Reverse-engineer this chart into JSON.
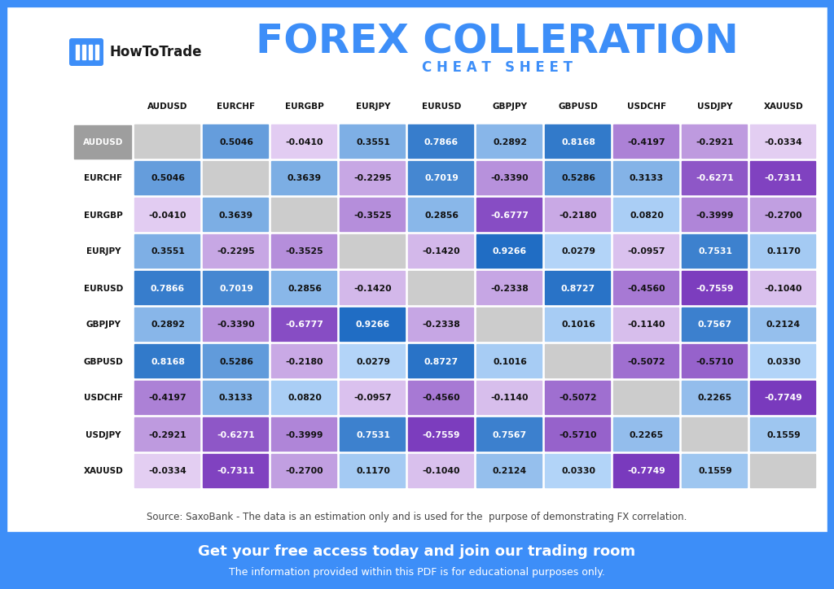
{
  "title": "FOREX COLLERATION",
  "subtitle": "C H E A T   S H E E T",
  "source_text": "Source: SaxoBank - The data is an estimation only and is used for the  purpose of demonstrating FX correlation.",
  "footer_main": "Get your free access today and join our trading room",
  "footer_sub": "The information provided within this PDF is for educational purposes only.",
  "currencies": [
    "AUDUSD",
    "EURCHF",
    "EURGBP",
    "EURJPY",
    "EURUSD",
    "GBPJPY",
    "GBPUSD",
    "USDCHF",
    "USDJPY",
    "XAUUSD"
  ],
  "matrix": [
    [
      null,
      0.5046,
      -0.041,
      0.3551,
      0.7866,
      0.2892,
      0.8168,
      -0.4197,
      -0.2921,
      -0.0334
    ],
    [
      0.5046,
      null,
      0.3639,
      -0.2295,
      0.7019,
      -0.339,
      0.5286,
      0.3133,
      -0.6271,
      -0.7311
    ],
    [
      -0.041,
      0.3639,
      null,
      -0.3525,
      0.2856,
      -0.6777,
      -0.218,
      0.082,
      -0.3999,
      -0.27
    ],
    [
      0.3551,
      -0.2295,
      -0.3525,
      null,
      -0.142,
      0.9266,
      0.0279,
      -0.0957,
      0.7531,
      0.117
    ],
    [
      0.7866,
      0.7019,
      0.2856,
      -0.142,
      null,
      -0.2338,
      0.8727,
      -0.456,
      -0.7559,
      -0.104
    ],
    [
      0.2892,
      -0.339,
      -0.6777,
      0.9266,
      -0.2338,
      null,
      0.1016,
      -0.114,
      0.7567,
      0.2124
    ],
    [
      0.8168,
      0.5286,
      -0.218,
      0.0279,
      0.8727,
      0.1016,
      null,
      -0.5072,
      -0.571,
      0.033
    ],
    [
      -0.4197,
      0.3133,
      0.082,
      -0.0957,
      -0.456,
      -0.114,
      -0.5072,
      null,
      0.2265,
      -0.7749
    ],
    [
      -0.2921,
      -0.6271,
      -0.3999,
      0.7531,
      -0.7559,
      0.7567,
      -0.571,
      0.2265,
      null,
      0.1559
    ],
    [
      -0.0334,
      -0.7311,
      -0.27,
      0.117,
      -0.104,
      0.2124,
      0.033,
      -0.7749,
      0.1559,
      null
    ]
  ],
  "bg_color": "#ffffff",
  "border_color": "#3d8ef8",
  "title_color": "#3d8ef8",
  "subtitle_color": "#3d8ef8",
  "header_row_label_bg": "#9e9e9e",
  "header_row_label_fg": "#ffffff",
  "footer_bg": "#3d8ef8",
  "footer_fg": "#ffffff"
}
